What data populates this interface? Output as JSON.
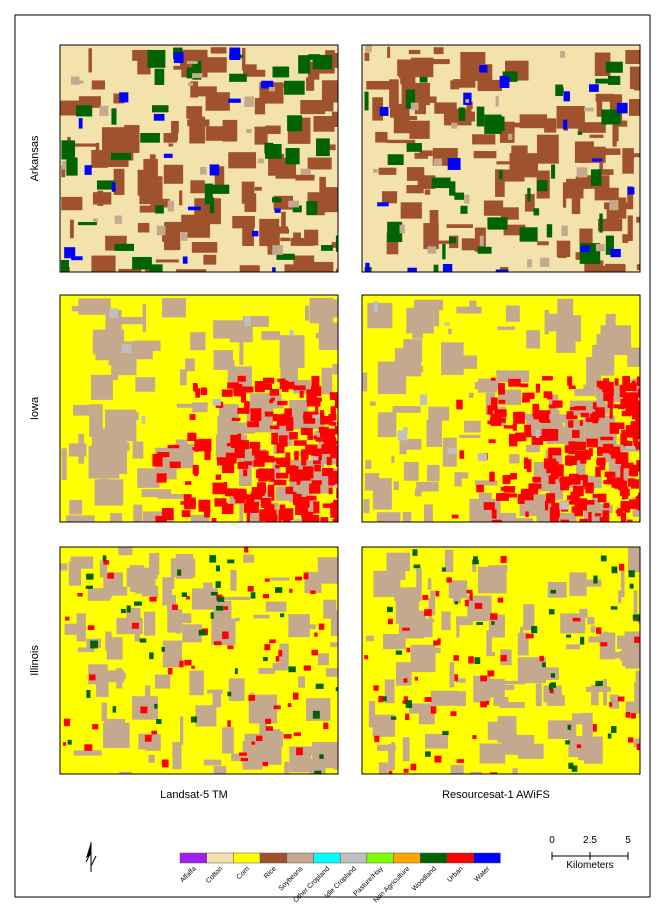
{
  "rows": [
    {
      "label": "Arkansas"
    },
    {
      "label": "Iowa"
    },
    {
      "label": "Illinois"
    }
  ],
  "columns": [
    {
      "label": "Landsat-5 TM"
    },
    {
      "label": "Resourcesat-1 AWiFS"
    }
  ],
  "legend": [
    {
      "label": "Alfalfa",
      "color": "#a020f0"
    },
    {
      "label": "Cotton",
      "color": "#f3e2ac"
    },
    {
      "label": "Corn",
      "color": "#ffff00"
    },
    {
      "label": "Rice",
      "color": "#a0522d"
    },
    {
      "label": "Soybeans",
      "color": "#c4a98e"
    },
    {
      "label": "Other Cropland",
      "color": "#00ffff"
    },
    {
      "label": "Idle Cropland",
      "color": "#c0c0c0"
    },
    {
      "label": "Pasture/Hay",
      "color": "#80ff00"
    },
    {
      "label": "Non Agriculture",
      "color": "#ffa500"
    },
    {
      "label": "Woodland",
      "color": "#006400"
    },
    {
      "label": "Urban",
      "color": "#ff0000"
    },
    {
      "label": "Water",
      "color": "#0000ff"
    }
  ],
  "scale_bar": {
    "ticks": [
      "0",
      "2.5",
      "5"
    ],
    "unit": "Kilometers"
  }
}
